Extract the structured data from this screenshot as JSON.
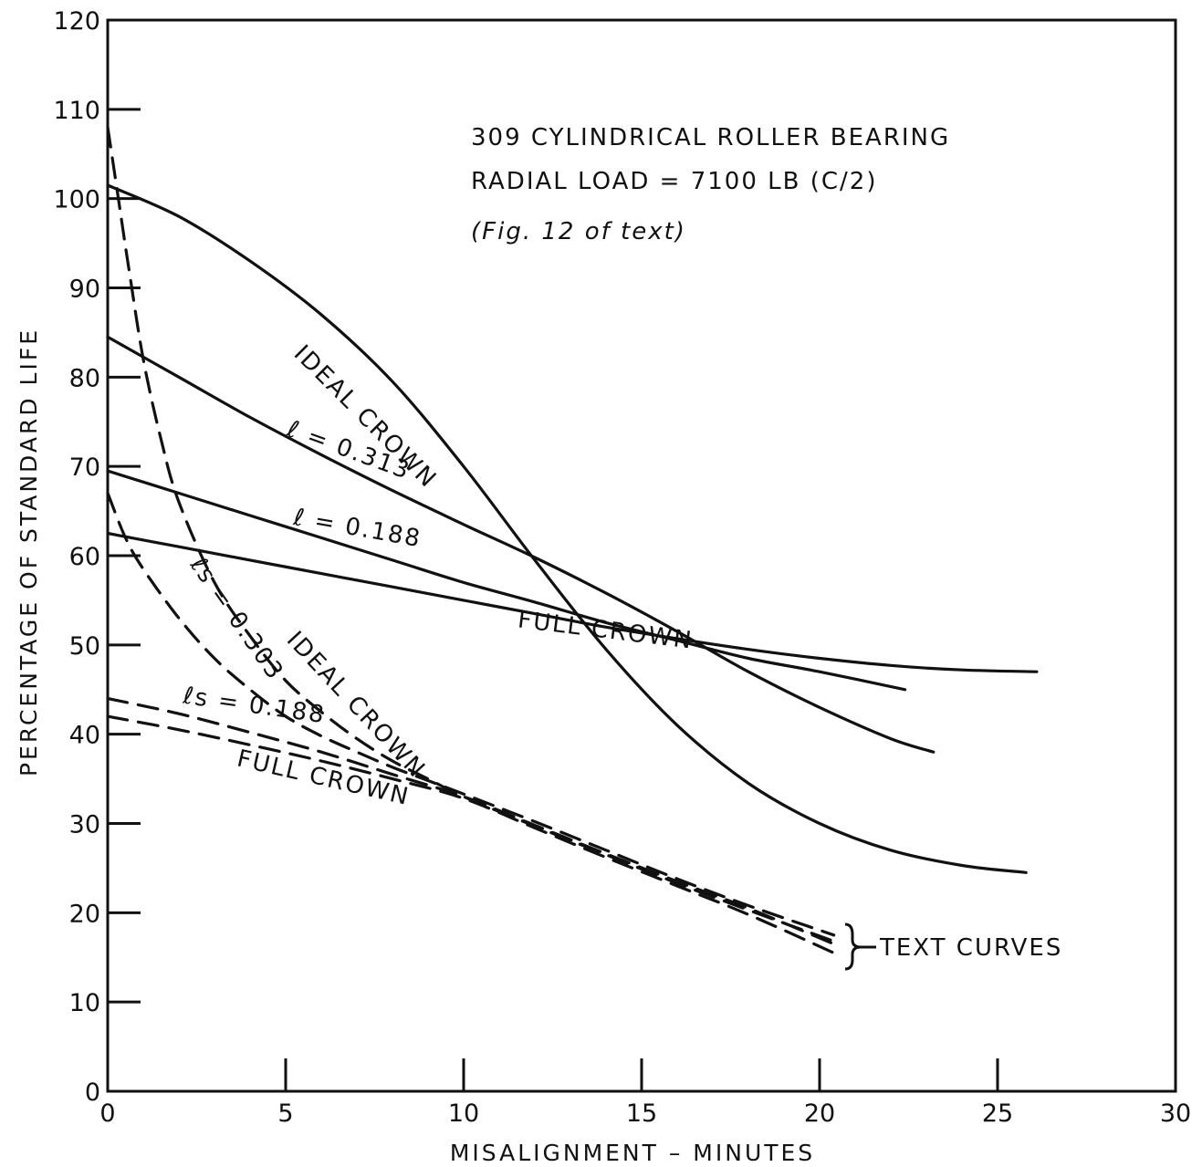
{
  "chart_data": {
    "type": "line",
    "xlabel": "MISALIGNMENT – MINUTES",
    "ylabel": "PERCENTAGE OF STANDARD LIFE",
    "xlim": [
      0,
      30
    ],
    "ylim": [
      0,
      120
    ],
    "x_ticks": [
      0,
      5,
      10,
      15,
      20,
      25,
      30
    ],
    "y_ticks": [
      0,
      10,
      20,
      30,
      40,
      50,
      60,
      70,
      80,
      90,
      100,
      110,
      120
    ],
    "grid": false,
    "annotation_lines": [
      "309 CYLINDRICAL ROLLER BEARING",
      "RADIAL LOAD = 7100 LB (C/2)",
      "(Fig. 12 of text)"
    ],
    "bracket_label": "TEXT CURVES",
    "series": [
      {
        "name": "IDEAL CROWN",
        "style": "solid",
        "x": [
          0,
          2,
          4,
          6,
          8,
          10,
          12,
          14,
          16,
          18,
          20,
          22,
          24,
          25.8
        ],
        "y": [
          101.5,
          98,
          93,
          87,
          79.5,
          70,
          59.5,
          49.5,
          41,
          34.5,
          30,
          27,
          25.3,
          24.5
        ]
      },
      {
        "name": "ℓ = 0.313",
        "style": "solid",
        "x": [
          0,
          2,
          4,
          6,
          8,
          10,
          12,
          14,
          16,
          18,
          20,
          22,
          23.2
        ],
        "y": [
          84.5,
          80,
          75.5,
          71.3,
          67.3,
          63.5,
          59.8,
          55.8,
          51.5,
          47,
          43,
          39.5,
          38
        ]
      },
      {
        "name": "ℓ = 0.188",
        "style": "solid",
        "x": [
          0,
          2,
          4,
          6,
          8,
          10,
          12,
          14,
          16,
          18,
          20,
          22.4
        ],
        "y": [
          69.5,
          67,
          64.5,
          62,
          59.5,
          57,
          54.8,
          52.5,
          50.5,
          48.5,
          47,
          45
        ]
      },
      {
        "name": "FULL CROWN",
        "style": "solid",
        "x": [
          0,
          2,
          4,
          6,
          8,
          10,
          12,
          14,
          16,
          18,
          20,
          22,
          24,
          26.1
        ],
        "y": [
          62.5,
          61,
          59.5,
          58,
          56.5,
          55,
          53.5,
          52,
          50.7,
          49.5,
          48.5,
          47.7,
          47.2,
          47
        ]
      },
      {
        "name": "IDEAL CROWN",
        "style": "dashed",
        "x": [
          0,
          0.3,
          0.6,
          1,
          1.5,
          2,
          3,
          4,
          5,
          6,
          7,
          8,
          9,
          10,
          12,
          14,
          16,
          18,
          20.4
        ],
        "y": [
          108,
          100,
          92,
          82,
          73,
          66,
          57,
          51,
          46,
          42.5,
          39.5,
          37,
          35,
          33,
          29.7,
          26.5,
          23.3,
          20.3,
          16.8
        ]
      },
      {
        "name": "ℓs = 0.303",
        "style": "dashed",
        "x": [
          0,
          0.5,
          1,
          2,
          3,
          4,
          5,
          6,
          7,
          8,
          9,
          10,
          12,
          14,
          16,
          18,
          20.4
        ],
        "y": [
          67,
          62,
          58.5,
          53,
          48.5,
          45,
          42,
          39.8,
          38,
          36.3,
          34.8,
          33.3,
          30.2,
          27,
          23.8,
          20.8,
          17.5
        ]
      },
      {
        "name": "ℓs = 0.188",
        "style": "dashed",
        "x": [
          0,
          2,
          4,
          6,
          8,
          10,
          12,
          14,
          16,
          18,
          20.4
        ],
        "y": [
          44,
          42.3,
          40.2,
          38,
          35.5,
          33,
          29.8,
          26.6,
          23.5,
          20.5,
          16.5
        ]
      },
      {
        "name": "FULL CROWN",
        "style": "dashed",
        "x": [
          0,
          2,
          4,
          6,
          8,
          10,
          12,
          14,
          16,
          18,
          20.4
        ],
        "y": [
          42,
          40.5,
          38.8,
          37,
          35,
          32.8,
          29.5,
          26.2,
          23,
          19.8,
          15.5
        ]
      }
    ],
    "curve_labels": [
      {
        "text": "IDEAL CROWN",
        "x": 5.2,
        "y": 82.5,
        "rot": 45
      },
      {
        "text": "ℓ = 0.313",
        "x": 5.0,
        "y": 73.5,
        "rot": 20
      },
      {
        "text": "ℓ = 0.188",
        "x": 5.2,
        "y": 63.5,
        "rot": 10
      },
      {
        "text": "FULL CROWN",
        "x": 11.5,
        "y": 52,
        "rot": 7
      },
      {
        "text": "IDEAL CROWN",
        "x": 5.0,
        "y": 50.5,
        "rot": 47
      },
      {
        "text": "ℓs = 0.303",
        "x": 2.3,
        "y": 59,
        "rot": 55
      },
      {
        "text": "ℓs = 0.188",
        "x": 2.1,
        "y": 43.5,
        "rot": 8
      },
      {
        "text": "FULL CROWN",
        "x": 3.6,
        "y": 36.5,
        "rot": 13
      }
    ]
  }
}
